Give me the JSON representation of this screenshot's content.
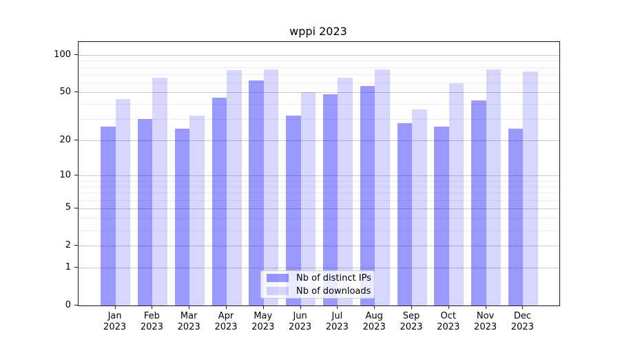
{
  "chart_data": {
    "type": "bar",
    "title": "wppi 2023",
    "categories": [
      "Jan 2023",
      "Feb 2023",
      "Mar 2023",
      "Apr 2023",
      "May 2023",
      "Jun 2023",
      "Jul 2023",
      "Aug 2023",
      "Sep 2023",
      "Oct 2023",
      "Nov 2023",
      "Dec 2023"
    ],
    "months": [
      "Jan",
      "Feb",
      "Mar",
      "Apr",
      "May",
      "Jun",
      "Jul",
      "Aug",
      "Sep",
      "Oct",
      "Nov",
      "Dec"
    ],
    "year": "2023",
    "series": [
      {
        "name": "Nb of distinct IPs",
        "color": "rgba(0,0,255,0.4)",
        "color_hex_on_white": "#9999ff",
        "values": [
          26,
          30,
          25,
          45,
          62,
          32,
          48,
          56,
          28,
          26,
          43,
          25
        ]
      },
      {
        "name": "Nb of downloads",
        "color": "rgba(0,0,255,0.16)",
        "color_hex_on_white": "#d6d6ff",
        "values": [
          44,
          66,
          32,
          76,
          77,
          50,
          66,
          77,
          36,
          59,
          77,
          74
        ]
      }
    ],
    "xlabel": "",
    "ylabel": "",
    "yscale": "log-like (position proportional to log10(1+value))",
    "yticks": [
      0,
      1,
      2,
      5,
      10,
      20,
      50,
      100
    ],
    "ytick_labels": [
      "0",
      "1",
      "2",
      "5",
      "10",
      "20",
      "50",
      "100"
    ],
    "minor_yticks": [
      3,
      4,
      6,
      7,
      8,
      9,
      30,
      40,
      60,
      70,
      80,
      90
    ],
    "ylim": [
      0,
      129
    ],
    "grid": true,
    "legend_position": "lower center",
    "colors": {
      "grid_major": "#c9c9c9",
      "grid_minor": "#ececec",
      "spine": "#1a1a1a",
      "legend_border": "#cccccc",
      "text": "#000000"
    }
  }
}
